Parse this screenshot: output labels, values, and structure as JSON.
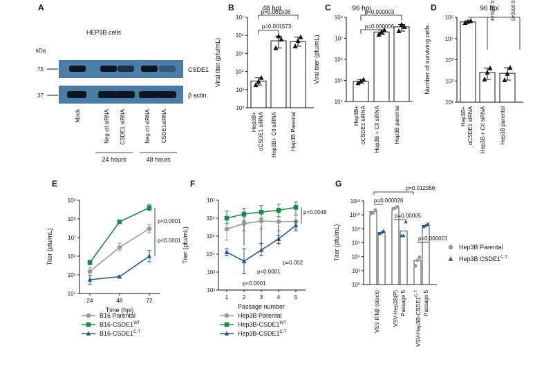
{
  "panels": {
    "A": {
      "letter": "A",
      "title": "HEP3B cells",
      "kda_label": "kDa",
      "markers": [
        "75",
        "37"
      ],
      "bands": [
        "CSDE1",
        "β actin"
      ],
      "lanes": [
        "Mock",
        "Neg ctl siRNA",
        "CSDE1 siRNA",
        "Neg ctl siRNA",
        "CSDE1siRNA"
      ],
      "timepoints": [
        "24 hours",
        "48 hours"
      ]
    }
  },
  "chart_data": [
    {
      "panel": "B",
      "type": "bar",
      "title": "48 hpi",
      "ylabel": "Viral titer (pfu/mL)",
      "yscale": "log",
      "ylim": [
        100.0,
        10000000.0
      ],
      "yticks": [
        "10²",
        "10³",
        "10⁴",
        "10⁵",
        "10⁶",
        "10⁷"
      ],
      "categories": [
        "Hep3B+ αCSDE1 siRNA",
        "Hep3B+ Ctl siRNA",
        "Hep3B Parental"
      ],
      "values": [
        3000,
        500000,
        450000
      ],
      "points": [
        [
          1800,
          2800,
          4500
        ],
        [
          200000,
          900000,
          600000
        ],
        [
          250000,
          500000,
          800000
        ]
      ],
      "significance": [
        {
          "label": "p=0.001508",
          "from": 0,
          "to": 2
        },
        {
          "label": "p=0.001573",
          "from": 0,
          "to": 1
        }
      ],
      "markers": [
        "triangle"
      ]
    },
    {
      "panel": "C",
      "type": "bar",
      "title": "96 hpi",
      "ylabel": "Viral titer (pfu/mL)",
      "yscale": "log",
      "ylim": [
        10000.0,
        100000000.0
      ],
      "yticks": [
        "10⁴",
        "10⁵",
        "10⁶",
        "10⁷",
        "10⁸"
      ],
      "categories": [
        "Hep3B+ αCSDE1 siRNA",
        "Hep3B + Ctl siRNA",
        "Hep3B parental"
      ],
      "values": [
        90000,
        20000000,
        35000000
      ],
      "points": [
        [
          75000,
          90000,
          110000
        ],
        [
          15000000,
          20000000,
          25000000
        ],
        [
          22000000,
          45000000,
          35000000
        ]
      ],
      "significance": [
        {
          "label": "p=0.000003",
          "from": 0,
          "to": 2
        },
        {
          "label": "p=0.000006",
          "from": 0,
          "to": 1
        }
      ],
      "markers": [
        "triangle"
      ]
    },
    {
      "panel": "D",
      "type": "bar",
      "title": "96 hpi",
      "ylabel": "Number of surviving cells",
      "yscale": "log",
      "ylim": [
        10.0,
        100000.0
      ],
      "yticks": [
        "10¹",
        "10²",
        "10³",
        "10⁴",
        "10⁵"
      ],
      "categories": [
        "Hep3B+ αCSDE1 siRNA",
        "Hep3B + Ctl siRNA",
        "Hep3B parental"
      ],
      "values": [
        60000,
        250,
        230
      ],
      "points": [
        [
          55000,
          62000,
          68000
        ],
        [
          120,
          250,
          400
        ],
        [
          110,
          220,
          420
        ]
      ],
      "significance": [
        {
          "label": "p=0.000048",
          "from": 0,
          "to": 1
        },
        {
          "label": "p=0.000045",
          "from": 0,
          "to": 2
        }
      ],
      "markers": [
        "triangle"
      ]
    },
    {
      "panel": "E",
      "type": "line",
      "xlabel": "Time (hpi)",
      "ylabel": "Titer (pfu/mL)",
      "yscale": "log",
      "ylim": [
        10000.0,
        1000000000.0
      ],
      "yticks": [
        "10⁴",
        "10⁵",
        "10⁶",
        "10⁷",
        "10⁸",
        "10⁹"
      ],
      "x": [
        24,
        48,
        72
      ],
      "series": [
        {
          "name": "B16 Parental",
          "sup": "",
          "color": "#999999",
          "marker": "circle",
          "values": [
            150000,
            3000000,
            30000000
          ],
          "err": [
            [
              90000,
              250000
            ],
            [
              2000000,
              5000000
            ],
            [
              18000000,
              50000000
            ]
          ]
        },
        {
          "name": "B16-CSDE1",
          "sup": "WT",
          "color": "#1a8a4a",
          "marker": "square",
          "values": [
            450000,
            70000000,
            400000000
          ],
          "err": [
            [
              350000,
              600000
            ],
            [
              55000000,
              85000000
            ],
            [
              280000000,
              600000000
            ]
          ]
        },
        {
          "name": "B16-CSDE1",
          "sup": "C-T",
          "color": "#1f5b8c",
          "marker": "triangle",
          "values": [
            55000,
            80000,
            1000000
          ],
          "err": [
            [
              30000,
              90000
            ],
            [
              70000,
              90000
            ],
            [
              500000,
              2000000
            ]
          ]
        }
      ],
      "annotations": [
        "p<0.0001",
        "p<0.0001"
      ]
    },
    {
      "panel": "F",
      "type": "line",
      "xlabel": "Passage number",
      "ylabel": "Titer (pfu/mL)",
      "yscale": "log",
      "ylim": [
        100.0,
        10000000.0
      ],
      "yticks": [
        "10²",
        "10³",
        "10⁴",
        "10⁵",
        "10⁶",
        "10⁷"
      ],
      "x": [
        1,
        2,
        3,
        4,
        5
      ],
      "series": [
        {
          "name": "Hep3B Parental",
          "sup": "",
          "color": "#999999",
          "marker": "circle",
          "values": [
            250000,
            500000,
            700000,
            650000,
            650000
          ],
          "err": [
            [
              60000,
              900000
            ],
            [
              200000,
              1200000
            ],
            [
              250000,
              2000000
            ],
            [
              200000,
              2000000
            ],
            [
              250000,
              1500000
            ]
          ]
        },
        {
          "name": "Hep3B-CSDE1",
          "sup": "WT",
          "color": "#1a8a4a",
          "marker": "square",
          "values": [
            1000000,
            1700000,
            2200000,
            2800000,
            4000000
          ],
          "err": [
            [
              500000,
              2500000
            ],
            [
              700000,
              3500000
            ],
            [
              1000000,
              5000000
            ],
            [
              1200000,
              6000000
            ],
            [
              1500000,
              8000000
            ]
          ]
        },
        {
          "name": "Hep3B-CSDE1",
          "sup": "C-T",
          "color": "#1f5b8c",
          "marker": "triangle",
          "values": [
            13000,
            4000,
            17000,
            70000,
            400000
          ],
          "err": [
            [
              8000,
              20000
            ],
            [
              800,
              20000
            ],
            [
              8000,
              40000
            ],
            [
              40000,
              110000
            ],
            [
              200000,
              700000
            ]
          ]
        }
      ],
      "annotations": [
        "p<0.0001",
        "p<0.0001",
        "p=0.002",
        "p=0.0046"
      ]
    },
    {
      "panel": "G",
      "type": "bar",
      "ylabel": "Titer (pfu/mL)",
      "yscale": "log",
      "ylim": [
        1,
        1000000000000.0
      ],
      "yticks": [
        "10¹²",
        "10¹⁰",
        "10⁸",
        "10⁶",
        "10⁴",
        "10²",
        "10⁰"
      ],
      "categories": [
        "VSV IFNβ (stock)",
        "VSV-Hep3B(P) Passage 5",
        "VSV-Hep3B-CSDE1C-T Passage 5"
      ],
      "series": [
        {
          "name": "Hep3B Parental",
          "sup": "",
          "color": "#999999",
          "marker": "circle",
          "values": [
            30000000000.0,
            100000000000.0,
            3000.0
          ],
          "points": [
            [
              15000000000.0,
              20000000000.0,
              50000000000.0
            ],
            [
              80000000000.0,
              100000000000.0,
              150000000000.0
            ],
            [
              500,
              3000,
              8000
            ]
          ]
        },
        {
          "name": "Hep3B CSDE1",
          "sup": "C-T",
          "color": "#1f5b8c",
          "marker": "triangle",
          "values": [
            30000000.0,
            50000000.0,
            300000000.0
          ],
          "points": [
            [
              20000000.0,
              30000000.0,
              50000000.0
            ],
            [
              10000000.0,
              10000000.0,
              1000000000.0
            ],
            [
              200000000.0,
              300000000.0,
              500000000.0
            ]
          ]
        }
      ],
      "significance": [
        {
          "label": "p=0.000026"
        },
        {
          "label": "p=0.012956"
        },
        {
          "label": "p=0.00005"
        },
        {
          "label": "p<0.000001"
        }
      ]
    }
  ]
}
